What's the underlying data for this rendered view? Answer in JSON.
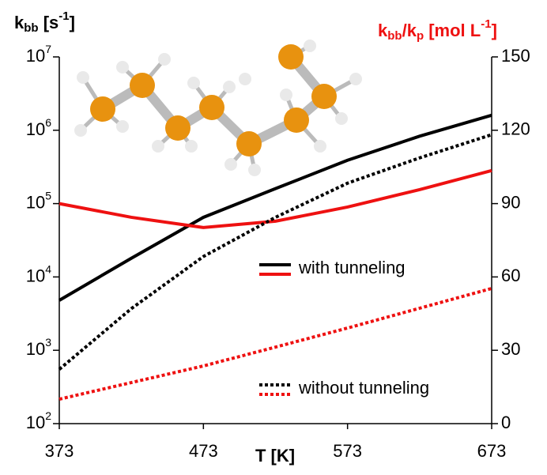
{
  "chart_data": {
    "type": "line",
    "y_label_parts": [
      "k",
      "bb",
      " [s",
      "-1",
      "]"
    ],
    "y2_label_parts": [
      "k",
      "bb",
      "/k",
      "p",
      " [mol L",
      "-1",
      "]"
    ],
    "x_label": "T [K]",
    "x": [
      373,
      423,
      473,
      523,
      573,
      623,
      673
    ],
    "xlim": [
      373,
      673
    ],
    "xticks": [
      373,
      473,
      573,
      673
    ],
    "ylim": [
      100,
      10000000
    ],
    "log_y": true,
    "yticks": [
      {
        "value": 100,
        "label": [
          "10",
          "2"
        ]
      },
      {
        "value": 1000,
        "label": [
          "10",
          "3"
        ]
      },
      {
        "value": 10000,
        "label": [
          "10",
          "4"
        ]
      },
      {
        "value": 100000,
        "label": [
          "10",
          "5"
        ]
      },
      {
        "value": 1000000,
        "label": [
          "10",
          "6"
        ]
      },
      {
        "value": 10000000,
        "label": [
          "10",
          "7"
        ]
      }
    ],
    "y2lim": [
      0,
      150
    ],
    "y2ticks": [
      0,
      30,
      60,
      90,
      120,
      150
    ],
    "series": [
      {
        "name": "with tunneling",
        "color": "#000000",
        "dash": false,
        "values": [
          4800,
          18000,
          65000,
          160000,
          390000,
          830000,
          1600000
        ]
      },
      {
        "color": "#ee1111",
        "dash": false,
        "axis": "y2",
        "values": [
          90,
          84.4,
          80.2,
          82.8,
          88.6,
          95.7,
          103.5
        ]
      },
      {
        "name": "without tunneling",
        "color": "#000000",
        "dash": true,
        "values": [
          550,
          3700,
          19000,
          65000,
          190000,
          420000,
          870000
        ]
      },
      {
        "color": "#ee1111",
        "dash": true,
        "axis": "y2",
        "values": [
          10,
          16.8,
          23.6,
          31.3,
          39.1,
          47.2,
          55.3
        ]
      }
    ]
  }
}
